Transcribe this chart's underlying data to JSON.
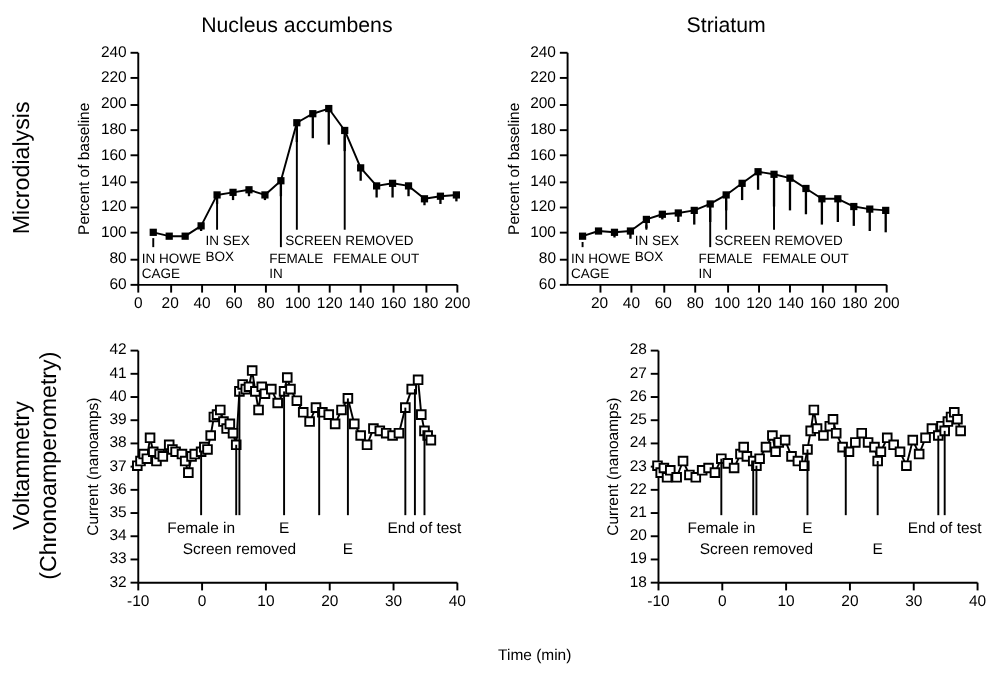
{
  "chart_data": [
    {
      "type": "line",
      "title": "Nucleus accumbens",
      "ylabel": "Percent of baseline",
      "marker": "square",
      "line_style": "solid",
      "grid": false,
      "x": [
        10,
        20,
        30,
        40,
        50,
        60,
        70,
        80,
        90,
        100,
        110,
        120,
        130,
        140,
        150,
        160,
        170,
        180,
        190,
        200
      ],
      "xlim": [
        0,
        200
      ],
      "xticks": [
        0,
        20,
        40,
        60,
        80,
        100,
        120,
        140,
        160,
        180,
        200
      ],
      "ylim": [
        60,
        240
      ],
      "yticks": [
        60,
        80,
        100,
        120,
        140,
        160,
        180,
        200,
        220,
        240
      ],
      "series": [
        {
          "color": "#000000",
          "values": [
            100,
            97,
            97,
            105,
            129,
            131,
            133,
            129,
            140,
            185,
            192,
            196,
            179,
            150,
            136,
            138,
            136,
            126,
            128,
            129
          ],
          "errors": [
            [
              98,
              100
            ],
            [
              95,
              97
            ],
            [
              95,
              97
            ],
            [
              101,
              105
            ],
            [
              122,
              129
            ],
            [
              125,
              131
            ],
            [
              128,
              133
            ],
            [
              125,
              129
            ],
            [
              128,
              140
            ],
            [
              170,
              185
            ],
            [
              173,
              192
            ],
            [
              168,
              196
            ],
            [
              163,
              179
            ],
            [
              140,
              150
            ],
            [
              127,
              136
            ],
            [
              127,
              138
            ],
            [
              128,
              136
            ],
            [
              121,
              126
            ],
            [
              122,
              128
            ],
            [
              124,
              129
            ]
          ]
        }
      ],
      "ref_lines": [
        {
          "axis": "x",
          "value": 10,
          "label": "IN HOWE\nCAGE"
        },
        {
          "axis": "x",
          "value": 50,
          "label": "IN SEX\nBOX"
        },
        {
          "axis": "x",
          "value": 90,
          "label": "FEMALE\nIN"
        },
        {
          "axis": "x",
          "value": 100,
          "label": "SCREEN REMOVED"
        },
        {
          "axis": "x",
          "value": 130,
          "label": "FEMALE OUT"
        }
      ],
      "annotations": [
        "Microdialysis"
      ]
    },
    {
      "type": "line",
      "title": "Striatum",
      "ylabel": "Percent of baseline",
      "marker": "square",
      "line_style": "solid",
      "grid": false,
      "x": [
        10,
        20,
        30,
        40,
        50,
        60,
        70,
        80,
        90,
        100,
        110,
        120,
        130,
        140,
        150,
        160,
        170,
        180,
        190,
        200
      ],
      "xlim": [
        0,
        200
      ],
      "xticks": [
        20,
        40,
        60,
        80,
        100,
        120,
        140,
        160,
        180,
        200
      ],
      "ylim": [
        60,
        240
      ],
      "yticks": [
        60,
        80,
        100,
        120,
        140,
        160,
        180,
        200,
        220,
        240
      ],
      "series": [
        {
          "color": "#000000",
          "values": [
            97,
            101,
            100,
            101,
            110,
            114,
            115,
            117,
            122,
            129,
            138,
            147,
            145,
            142,
            134,
            126,
            126,
            120,
            118,
            117
          ],
          "errors": [
            [
              95,
              97
            ],
            [
              99,
              101
            ],
            [
              96,
              100
            ],
            [
              95,
              101
            ],
            [
              103,
              110
            ],
            [
              110,
              114
            ],
            [
              108,
              115
            ],
            [
              106,
              117
            ],
            [
              108,
              122
            ],
            [
              117,
              129
            ],
            [
              125,
              138
            ],
            [
              133,
              147
            ],
            [
              120,
              145
            ],
            [
              117,
              142
            ],
            [
              114,
              134
            ],
            [
              106,
              126
            ],
            [
              108,
              126
            ],
            [
              105,
              120
            ],
            [
              101,
              118
            ],
            [
              100,
              117
            ]
          ]
        }
      ],
      "ref_lines": [
        {
          "axis": "x",
          "value": 10,
          "label": "IN HOWE\nCAGE"
        },
        {
          "axis": "x",
          "value": 50,
          "label": "IN SEX\nBOX"
        },
        {
          "axis": "x",
          "value": 90,
          "label": "FEMALE\nIN"
        },
        {
          "axis": "x",
          "value": 100,
          "label": "SCREEN REMOVED"
        },
        {
          "axis": "x",
          "value": 130,
          "label": "FEMALE OUT"
        }
      ]
    },
    {
      "type": "line",
      "ylabel": "Current (nanoamps)",
      "xlabel": "Time (min)",
      "marker": "square",
      "line_style": "solid",
      "grid": false,
      "xlim": [
        -10,
        40
      ],
      "xticks": [
        -10,
        0,
        10,
        20,
        30,
        40
      ],
      "ylim": [
        32,
        42
      ],
      "yticks": [
        32,
        33,
        34,
        35,
        36,
        37,
        38,
        39,
        40,
        41,
        42
      ],
      "series": [
        {
          "color": "#000000",
          "x": [
            -10,
            -9.5,
            -9,
            -8.5,
            -8,
            -7.5,
            -7,
            -6.5,
            -6,
            -5,
            -4.5,
            -4,
            -3,
            -2.5,
            -2,
            -1.5,
            -1,
            0,
            0.5,
            1,
            1.5,
            2,
            2.5,
            3,
            3.5,
            4,
            4.5,
            5,
            5.5,
            6,
            6.5,
            7,
            7.5,
            8,
            8.5,
            9,
            9.5,
            10,
            11,
            12,
            13,
            13.5,
            14,
            15,
            16,
            17,
            18,
            19,
            20,
            21,
            22,
            23,
            24,
            25,
            26,
            27,
            28,
            29,
            30,
            31,
            32,
            33,
            34,
            34.5,
            35,
            35.5,
            36
          ],
          "values": [
            37.0,
            37.2,
            37.5,
            37.3,
            38.2,
            37.6,
            37.2,
            37.5,
            37.4,
            37.9,
            37.7,
            37.6,
            37.5,
            37.2,
            36.7,
            37.4,
            37.5,
            37.6,
            37.8,
            37.7,
            38.3,
            39.1,
            39.2,
            39.4,
            38.9,
            38.6,
            38.8,
            38.4,
            37.9,
            40.2,
            40.5,
            40.3,
            40.4,
            41.1,
            40.2,
            39.4,
            40.4,
            40.1,
            40.3,
            39.7,
            40.2,
            40.8,
            40.3,
            39.8,
            39.3,
            38.9,
            39.5,
            39.3,
            39.2,
            38.8,
            39.4,
            39.9,
            38.8,
            38.3,
            37.9,
            38.6,
            38.5,
            38.4,
            38.3,
            38.4,
            39.5,
            40.3,
            40.7,
            39.2,
            38.5,
            38.3,
            38.1
          ]
        }
      ],
      "ref_lines": [
        {
          "axis": "x",
          "value": 0,
          "label": "Female in"
        },
        {
          "axis": "x",
          "value": 5.5,
          "label": null
        },
        {
          "axis": "x",
          "value": 6,
          "label": "Screen removed"
        },
        {
          "axis": "x",
          "value": 13,
          "label": "E"
        },
        {
          "axis": "x",
          "value": 18.5,
          "label": null
        },
        {
          "axis": "x",
          "value": 23,
          "label": "E"
        },
        {
          "axis": "x",
          "value": 32,
          "label": null
        },
        {
          "axis": "x",
          "value": 33.5,
          "label": null
        },
        {
          "axis": "x",
          "value": 35,
          "label": "End of test"
        }
      ],
      "annotations": [
        "Voltammetry\n(Chronoamperometry)"
      ]
    },
    {
      "type": "line",
      "ylabel": "Current (nanoamps)",
      "marker": "square",
      "line_style": "solid",
      "grid": false,
      "xlim": [
        -10,
        40
      ],
      "xticks": [
        -10,
        0,
        10,
        20,
        30,
        40
      ],
      "ylim": [
        18,
        28
      ],
      "yticks": [
        18,
        19,
        20,
        21,
        22,
        23,
        24,
        25,
        26,
        27,
        28
      ],
      "series": [
        {
          "color": "#000000",
          "x": [
            -10,
            -9.5,
            -9,
            -8.5,
            -8,
            -7,
            -6,
            -5,
            -4,
            -3,
            -2,
            -1,
            0,
            1,
            2,
            3,
            3.5,
            4,
            5,
            5.5,
            6,
            7,
            8,
            8.5,
            9,
            10,
            11,
            12,
            13,
            13.5,
            14,
            14.5,
            15,
            16,
            17,
            17.5,
            18,
            19,
            20,
            21,
            22,
            23,
            24,
            24.5,
            25,
            26,
            27,
            28,
            29,
            30,
            31,
            32,
            33,
            34,
            34.5,
            35,
            35.5,
            36,
            36.5,
            37,
            37.5
          ],
          "values": [
            23.0,
            22.7,
            22.9,
            22.5,
            22.8,
            22.5,
            23.2,
            22.6,
            22.5,
            22.8,
            22.9,
            22.7,
            23.3,
            23.1,
            22.9,
            23.5,
            23.8,
            23.4,
            23.2,
            23.0,
            23.3,
            23.8,
            24.3,
            23.6,
            24.0,
            24.1,
            23.4,
            23.2,
            23.0,
            23.7,
            24.5,
            25.4,
            24.6,
            24.3,
            24.7,
            25.0,
            24.4,
            23.8,
            23.6,
            24.0,
            24.4,
            24.0,
            23.8,
            23.2,
            23.6,
            24.2,
            23.9,
            23.6,
            23.0,
            24.1,
            23.5,
            24.2,
            24.6,
            24.3,
            24.7,
            24.5,
            24.9,
            25.1,
            25.3,
            25.0,
            24.5
          ]
        }
      ],
      "ref_lines": [
        {
          "axis": "x",
          "value": 0,
          "label": "Female in"
        },
        {
          "axis": "x",
          "value": 5,
          "label": null
        },
        {
          "axis": "x",
          "value": 5.5,
          "label": "Screen removed"
        },
        {
          "axis": "x",
          "value": 13.5,
          "label": "E"
        },
        {
          "axis": "x",
          "value": 19.5,
          "label": null
        },
        {
          "axis": "x",
          "value": 24.5,
          "label": "E"
        },
        {
          "axis": "x",
          "value": 34,
          "label": null
        },
        {
          "axis": "x",
          "value": 35,
          "label": "End of test"
        }
      ]
    }
  ]
}
